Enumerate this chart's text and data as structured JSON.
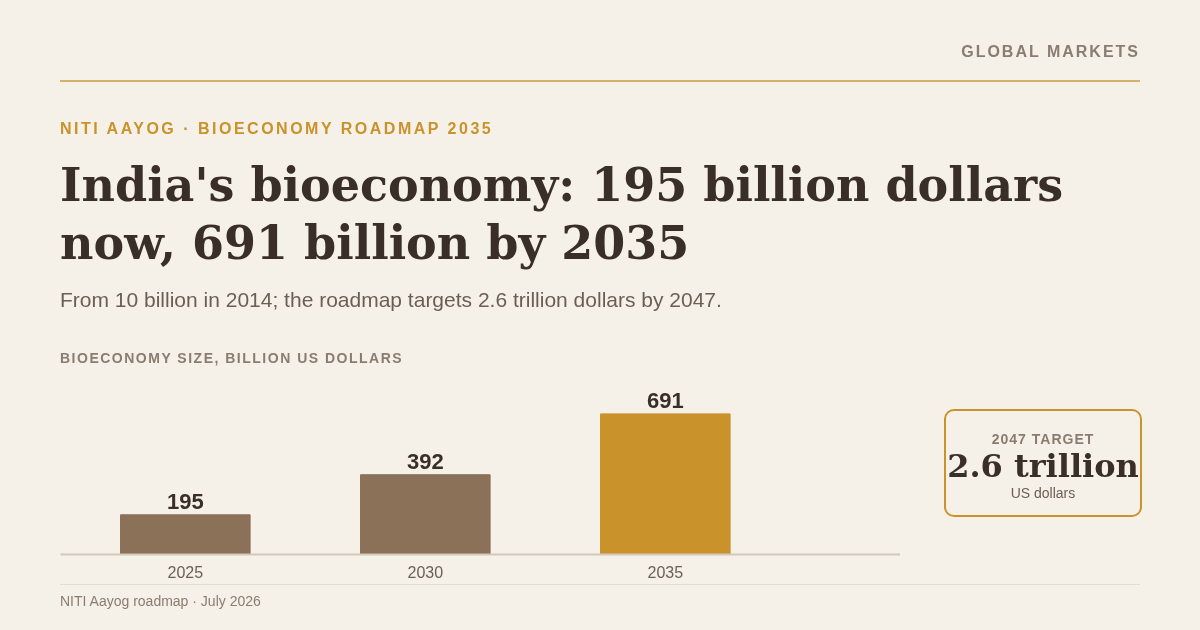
{
  "chart_data": {
    "type": "bar",
    "title": "India's bioeconomy: 195 billion dollars now, 691 billion by 2035",
    "subtitle": "From 10 billion in 2014; the roadmap targets 2.6 trillion dollars by 2047.",
    "ylabel": "BIOECONOMY SIZE, BILLION US DOLLARS",
    "categories": [
      "2025",
      "2030",
      "2035"
    ],
    "values": [
      195,
      392,
      691
    ],
    "colors": [
      "#8a7158",
      "#8a7158",
      "#c9922a"
    ],
    "data_labels": true,
    "annotations": [
      "GLOBAL MARKETS",
      "NITI AAYOG · BIOECONOMY ROADMAP 2035",
      "2047 TARGET",
      "2.6 trillion",
      "US dollars",
      "NITI Aayog roadmap · July 2026"
    ]
  }
}
